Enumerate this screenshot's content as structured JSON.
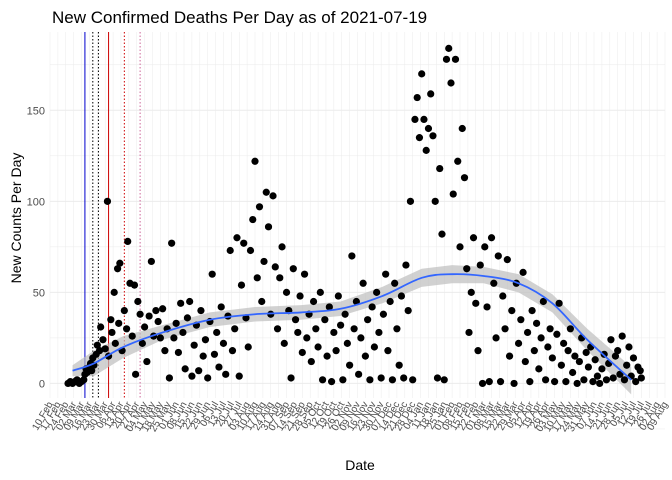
{
  "chart_data": {
    "type": "scatter",
    "title": "New Confirmed Deaths Per Day as of 2021-07-19",
    "xlabel": "Date",
    "ylabel": "New Counts Per Day",
    "x_start": "2020-02-10",
    "x_end": "2021-08-09",
    "ylim": [
      -8,
      193
    ],
    "yticks": [
      0,
      50,
      100,
      150
    ],
    "xticks": [
      "10 Feb",
      "17 Feb",
      "24 Feb",
      "02 Mar",
      "09 Mar",
      "16 Mar",
      "23 Mar",
      "30 Mar",
      "06 Apr",
      "13 Apr",
      "20 Apr",
      "27 Apr",
      "04 May",
      "11 May",
      "18 May",
      "25 May",
      "01 Jun",
      "08 Jun",
      "15 Jun",
      "22 Jun",
      "29 Jun",
      "06 Jul",
      "13 Jul",
      "20 Jul",
      "27 Jul",
      "03 Aug",
      "10 Aug",
      "17 Aug",
      "24 Aug",
      "31 Aug",
      "07 Sep",
      "14 Sep",
      "21 Sep",
      "28 Sep",
      "05 Oct",
      "12 Oct",
      "19 Oct",
      "26 Oct",
      "02 Nov",
      "09 Nov",
      "16 Nov",
      "23 Nov",
      "30 Nov",
      "07 Dec",
      "14 Dec",
      "21 Dec",
      "28 Dec",
      "04 Jan",
      "11 Jan",
      "18 Jan",
      "25 Jan",
      "01 Feb",
      "08 Feb",
      "15 Feb",
      "22 Feb",
      "01 Mar",
      "08 Mar",
      "15 Mar",
      "22 Mar",
      "29 Mar",
      "05 Apr",
      "12 Apr",
      "19 Apr",
      "26 Apr",
      "03 May",
      "10 May",
      "17 May",
      "24 May",
      "31 May",
      "07 Jun",
      "14 Jun",
      "21 Jun",
      "28 Jun",
      "05 Jul",
      "12 Jul",
      "19 Jul",
      "26 Jul",
      "02 Aug",
      "09 Aug"
    ],
    "grid": true,
    "vlines": [
      {
        "date": "2020-03-12",
        "color": "#0000cc",
        "style": "solid"
      },
      {
        "date": "2020-03-19",
        "color": "#000000",
        "style": "dotted"
      },
      {
        "date": "2020-03-24",
        "color": "#000000",
        "style": "dotted"
      },
      {
        "date": "2020-04-02",
        "color": "#cc0000",
        "style": "solid"
      },
      {
        "date": "2020-04-16",
        "color": "#cc0000",
        "style": "dotted"
      },
      {
        "date": "2020-04-30",
        "color": "#cc6699",
        "style": "dotted"
      }
    ],
    "trend": {
      "color": "#3366ff",
      "band_color": "#bdbdbd",
      "points": [
        {
          "x": "2020-03-01",
          "y": 7,
          "lo": 4,
          "hi": 10
        },
        {
          "x": "2020-03-20",
          "y": 11,
          "lo": 4,
          "hi": 18
        },
        {
          "x": "2020-04-15",
          "y": 20,
          "lo": 14,
          "hi": 26
        },
        {
          "x": "2020-05-20",
          "y": 28,
          "lo": 24,
          "hi": 32
        },
        {
          "x": "2020-07-01",
          "y": 35,
          "lo": 31,
          "hi": 39
        },
        {
          "x": "2020-08-10",
          "y": 38,
          "lo": 34,
          "hi": 42
        },
        {
          "x": "2020-09-20",
          "y": 39,
          "lo": 35,
          "hi": 43
        },
        {
          "x": "2020-10-25",
          "y": 41,
          "lo": 37,
          "hi": 45
        },
        {
          "x": "2020-12-01",
          "y": 48,
          "lo": 44,
          "hi": 53
        },
        {
          "x": "2021-01-05",
          "y": 58,
          "lo": 53,
          "hi": 63
        },
        {
          "x": "2021-02-01",
          "y": 60,
          "lo": 55,
          "hi": 65
        },
        {
          "x": "2021-03-01",
          "y": 59,
          "lo": 55,
          "hi": 64
        },
        {
          "x": "2021-04-01",
          "y": 55,
          "lo": 50,
          "hi": 60
        },
        {
          "x": "2021-05-01",
          "y": 44,
          "lo": 39,
          "hi": 49
        },
        {
          "x": "2021-06-01",
          "y": 24,
          "lo": 18,
          "hi": 30
        },
        {
          "x": "2021-07-10",
          "y": 2,
          "lo": -6,
          "hi": 9
        }
      ]
    },
    "points": [
      [
        "2020-02-26",
        0
      ],
      [
        "2020-02-28",
        1
      ],
      [
        "2020-03-01",
        0
      ],
      [
        "2020-03-03",
        1
      ],
      [
        "2020-03-05",
        2
      ],
      [
        "2020-03-07",
        0
      ],
      [
        "2020-03-09",
        1
      ],
      [
        "2020-03-11",
        2
      ],
      [
        "2020-03-12",
        5
      ],
      [
        "2020-03-13",
        8
      ],
      [
        "2020-03-14",
        6
      ],
      [
        "2020-03-16",
        9
      ],
      [
        "2020-03-17",
        11
      ],
      [
        "2020-03-18",
        7
      ],
      [
        "2020-03-19",
        14
      ],
      [
        "2020-03-20",
        10
      ],
      [
        "2020-03-22",
        16
      ],
      [
        "2020-03-23",
        21
      ],
      [
        "2020-03-25",
        18
      ],
      [
        "2020-03-26",
        31
      ],
      [
        "2020-03-28",
        24
      ],
      [
        "2020-03-30",
        19
      ],
      [
        "2020-04-01",
        100
      ],
      [
        "2020-04-02",
        15
      ],
      [
        "2020-04-04",
        35
      ],
      [
        "2020-04-05",
        28
      ],
      [
        "2020-04-07",
        50
      ],
      [
        "2020-04-08",
        22
      ],
      [
        "2020-04-10",
        63
      ],
      [
        "2020-04-11",
        33
      ],
      [
        "2020-04-12",
        66
      ],
      [
        "2020-04-14",
        18
      ],
      [
        "2020-04-16",
        40
      ],
      [
        "2020-04-18",
        30
      ],
      [
        "2020-04-19",
        78
      ],
      [
        "2020-04-21",
        55
      ],
      [
        "2020-04-23",
        26
      ],
      [
        "2020-04-25",
        54
      ],
      [
        "2020-04-26",
        5
      ],
      [
        "2020-04-28",
        45
      ],
      [
        "2020-04-30",
        38
      ],
      [
        "2020-05-02",
        22
      ],
      [
        "2020-05-04",
        31
      ],
      [
        "2020-05-06",
        12
      ],
      [
        "2020-05-08",
        37
      ],
      [
        "2020-05-10",
        67
      ],
      [
        "2020-05-12",
        26
      ],
      [
        "2020-05-14",
        40
      ],
      [
        "2020-05-16",
        34
      ],
      [
        "2020-05-18",
        25
      ],
      [
        "2020-05-20",
        41
      ],
      [
        "2020-05-22",
        18
      ],
      [
        "2020-05-24",
        30
      ],
      [
        "2020-05-26",
        3
      ],
      [
        "2020-05-28",
        77
      ],
      [
        "2020-05-30",
        25
      ],
      [
        "2020-06-01",
        33
      ],
      [
        "2020-06-03",
        17
      ],
      [
        "2020-06-05",
        44
      ],
      [
        "2020-06-07",
        28
      ],
      [
        "2020-06-09",
        8
      ],
      [
        "2020-06-11",
        36
      ],
      [
        "2020-06-13",
        45
      ],
      [
        "2020-06-15",
        4
      ],
      [
        "2020-06-17",
        21
      ],
      [
        "2020-06-19",
        32
      ],
      [
        "2020-06-21",
        7
      ],
      [
        "2020-06-23",
        40
      ],
      [
        "2020-06-25",
        15
      ],
      [
        "2020-06-27",
        24
      ],
      [
        "2020-06-29",
        3
      ],
      [
        "2020-07-01",
        34
      ],
      [
        "2020-07-03",
        60
      ],
      [
        "2020-07-05",
        16
      ],
      [
        "2020-07-07",
        28
      ],
      [
        "2020-07-09",
        9
      ],
      [
        "2020-07-11",
        42
      ],
      [
        "2020-07-13",
        22
      ],
      [
        "2020-07-15",
        5
      ],
      [
        "2020-07-17",
        37
      ],
      [
        "2020-07-19",
        73
      ],
      [
        "2020-07-21",
        18
      ],
      [
        "2020-07-23",
        30
      ],
      [
        "2020-07-25",
        80
      ],
      [
        "2020-07-27",
        4
      ],
      [
        "2020-07-29",
        54
      ],
      [
        "2020-07-31",
        77
      ],
      [
        "2020-08-02",
        36
      ],
      [
        "2020-08-04",
        20
      ],
      [
        "2020-08-06",
        73
      ],
      [
        "2020-08-08",
        90
      ],
      [
        "2020-08-10",
        122
      ],
      [
        "2020-08-12",
        58
      ],
      [
        "2020-08-14",
        97
      ],
      [
        "2020-08-16",
        45
      ],
      [
        "2020-08-18",
        67
      ],
      [
        "2020-08-20",
        105
      ],
      [
        "2020-08-22",
        86
      ],
      [
        "2020-08-24",
        38
      ],
      [
        "2020-08-26",
        103
      ],
      [
        "2020-08-28",
        64
      ],
      [
        "2020-08-30",
        30
      ],
      [
        "2020-09-01",
        58
      ],
      [
        "2020-09-03",
        75
      ],
      [
        "2020-09-05",
        22
      ],
      [
        "2020-09-07",
        50
      ],
      [
        "2020-09-09",
        40
      ],
      [
        "2020-09-11",
        3
      ],
      [
        "2020-09-13",
        63
      ],
      [
        "2020-09-15",
        35
      ],
      [
        "2020-09-17",
        28
      ],
      [
        "2020-09-19",
        48
      ],
      [
        "2020-09-21",
        17
      ],
      [
        "2020-09-23",
        60
      ],
      [
        "2020-09-25",
        25
      ],
      [
        "2020-09-27",
        38
      ],
      [
        "2020-09-29",
        12
      ],
      [
        "2020-10-01",
        45
      ],
      [
        "2020-10-03",
        30
      ],
      [
        "2020-10-05",
        20
      ],
      [
        "2020-10-07",
        50
      ],
      [
        "2020-10-09",
        2
      ],
      [
        "2020-10-11",
        35
      ],
      [
        "2020-10-13",
        15
      ],
      [
        "2020-10-15",
        42
      ],
      [
        "2020-10-17",
        1
      ],
      [
        "2020-10-19",
        28
      ],
      [
        "2020-10-21",
        18
      ],
      [
        "2020-10-23",
        48
      ],
      [
        "2020-10-25",
        32
      ],
      [
        "2020-10-27",
        2
      ],
      [
        "2020-10-29",
        38
      ],
      [
        "2020-10-31",
        22
      ],
      [
        "2020-11-02",
        10
      ],
      [
        "2020-11-04",
        70
      ],
      [
        "2020-11-06",
        30
      ],
      [
        "2020-11-08",
        45
      ],
      [
        "2020-11-10",
        5
      ],
      [
        "2020-11-12",
        25
      ],
      [
        "2020-11-14",
        55
      ],
      [
        "2020-11-16",
        15
      ],
      [
        "2020-11-18",
        35
      ],
      [
        "2020-11-20",
        2
      ],
      [
        "2020-11-22",
        42
      ],
      [
        "2020-11-24",
        20
      ],
      [
        "2020-11-26",
        50
      ],
      [
        "2020-11-28",
        28
      ],
      [
        "2020-11-30",
        3
      ],
      [
        "2020-12-02",
        38
      ],
      [
        "2020-12-04",
        60
      ],
      [
        "2020-12-06",
        18
      ],
      [
        "2020-12-08",
        45
      ],
      [
        "2020-12-10",
        2
      ],
      [
        "2020-12-12",
        55
      ],
      [
        "2020-12-14",
        30
      ],
      [
        "2020-12-16",
        10
      ],
      [
        "2020-12-18",
        48
      ],
      [
        "2020-12-20",
        3
      ],
      [
        "2020-12-22",
        65
      ],
      [
        "2020-12-24",
        40
      ],
      [
        "2020-12-26",
        100
      ],
      [
        "2020-12-28",
        2
      ],
      [
        "2020-12-30",
        145
      ],
      [
        "2021-01-01",
        157
      ],
      [
        "2021-01-03",
        135
      ],
      [
        "2021-01-05",
        170
      ],
      [
        "2021-01-07",
        145
      ],
      [
        "2021-01-09",
        128
      ],
      [
        "2021-01-11",
        140
      ],
      [
        "2021-01-13",
        159
      ],
      [
        "2021-01-15",
        136
      ],
      [
        "2021-01-17",
        100
      ],
      [
        "2021-01-19",
        3
      ],
      [
        "2021-01-21",
        118
      ],
      [
        "2021-01-23",
        82
      ],
      [
        "2021-01-25",
        2
      ],
      [
        "2021-01-27",
        178
      ],
      [
        "2021-01-29",
        184
      ],
      [
        "2021-01-31",
        165
      ],
      [
        "2021-02-02",
        104
      ],
      [
        "2021-02-04",
        178
      ],
      [
        "2021-02-06",
        122
      ],
      [
        "2021-02-08",
        75
      ],
      [
        "2021-02-10",
        140
      ],
      [
        "2021-02-12",
        113
      ],
      [
        "2021-02-14",
        63
      ],
      [
        "2021-02-16",
        28
      ],
      [
        "2021-02-18",
        50
      ],
      [
        "2021-02-20",
        80
      ],
      [
        "2021-02-22",
        44
      ],
      [
        "2021-02-24",
        18
      ],
      [
        "2021-02-26",
        65
      ],
      [
        "2021-02-28",
        0
      ],
      [
        "2021-03-02",
        75
      ],
      [
        "2021-03-04",
        42
      ],
      [
        "2021-03-06",
        1
      ],
      [
        "2021-03-08",
        80
      ],
      [
        "2021-03-10",
        55
      ],
      [
        "2021-03-12",
        25
      ],
      [
        "2021-03-14",
        70
      ],
      [
        "2021-03-16",
        1
      ],
      [
        "2021-03-18",
        48
      ],
      [
        "2021-03-20",
        30
      ],
      [
        "2021-03-22",
        68
      ],
      [
        "2021-03-24",
        15
      ],
      [
        "2021-03-26",
        40
      ],
      [
        "2021-03-28",
        0
      ],
      [
        "2021-03-30",
        55
      ],
      [
        "2021-04-01",
        22
      ],
      [
        "2021-04-03",
        35
      ],
      [
        "2021-04-05",
        61
      ],
      [
        "2021-04-07",
        12
      ],
      [
        "2021-04-09",
        28
      ],
      [
        "2021-04-11",
        1
      ],
      [
        "2021-04-13",
        40
      ],
      [
        "2021-04-15",
        18
      ],
      [
        "2021-04-17",
        33
      ],
      [
        "2021-04-19",
        8
      ],
      [
        "2021-04-21",
        25
      ],
      [
        "2021-04-23",
        45
      ],
      [
        "2021-04-25",
        2
      ],
      [
        "2021-04-27",
        20
      ],
      [
        "2021-04-29",
        30
      ],
      [
        "2021-05-01",
        14
      ],
      [
        "2021-05-03",
        1
      ],
      [
        "2021-05-05",
        27
      ],
      [
        "2021-05-07",
        44
      ],
      [
        "2021-05-09",
        10
      ],
      [
        "2021-05-11",
        22
      ],
      [
        "2021-05-13",
        1
      ],
      [
        "2021-05-15",
        18
      ],
      [
        "2021-05-17",
        30
      ],
      [
        "2021-05-19",
        6
      ],
      [
        "2021-05-21",
        15
      ],
      [
        "2021-05-23",
        0
      ],
      [
        "2021-05-25",
        12
      ],
      [
        "2021-05-27",
        25
      ],
      [
        "2021-05-29",
        2
      ],
      [
        "2021-05-31",
        17
      ],
      [
        "2021-06-02",
        9
      ],
      [
        "2021-06-04",
        20
      ],
      [
        "2021-06-06",
        1
      ],
      [
        "2021-06-08",
        13
      ],
      [
        "2021-06-10",
        4
      ],
      [
        "2021-06-12",
        0
      ],
      [
        "2021-06-14",
        8
      ],
      [
        "2021-06-16",
        16
      ],
      [
        "2021-06-18",
        2
      ],
      [
        "2021-06-20",
        11
      ],
      [
        "2021-06-22",
        24
      ],
      [
        "2021-06-24",
        3
      ],
      [
        "2021-06-26",
        15
      ],
      [
        "2021-06-28",
        18
      ],
      [
        "2021-06-30",
        5
      ],
      [
        "2021-07-02",
        26
      ],
      [
        "2021-07-04",
        2
      ],
      [
        "2021-07-06",
        10
      ],
      [
        "2021-07-08",
        20
      ],
      [
        "2021-07-10",
        4
      ],
      [
        "2021-07-12",
        14
      ],
      [
        "2021-07-14",
        1
      ],
      [
        "2021-07-16",
        9
      ],
      [
        "2021-07-18",
        7
      ],
      [
        "2021-07-19",
        3
      ]
    ]
  }
}
